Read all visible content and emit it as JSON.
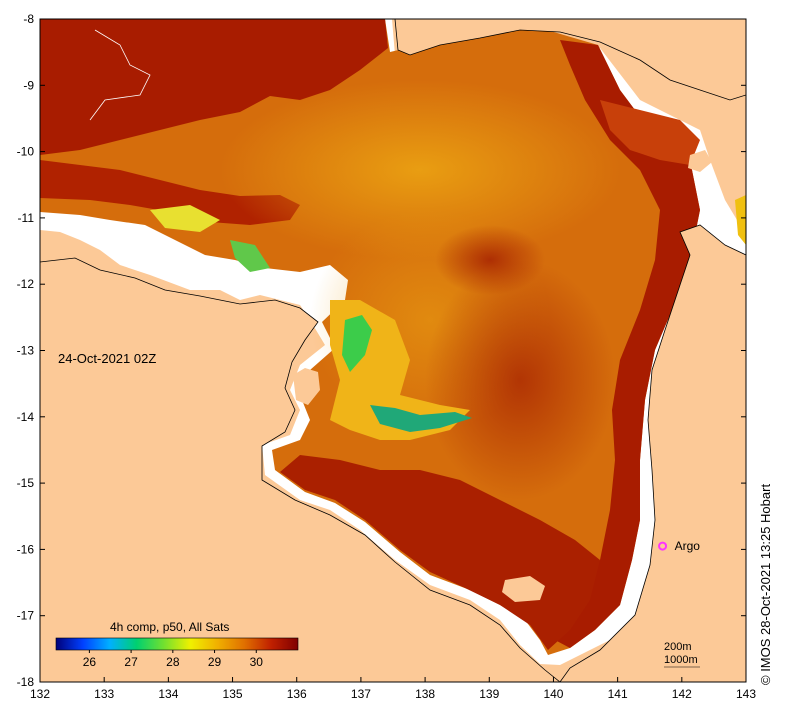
{
  "map": {
    "timestamp_label": "24-Oct-2021 02Z",
    "credit": "© IMOS 28-Oct-2021 13:25 Hobart",
    "x_axis": {
      "ticks": [
        "132",
        "133",
        "134",
        "135",
        "136",
        "137",
        "138",
        "139",
        "140",
        "141",
        "142",
        "143"
      ],
      "range": [
        132,
        143
      ]
    },
    "y_axis": {
      "ticks": [
        "-8",
        "-9",
        "-10",
        "-11",
        "-12",
        "-13",
        "-14",
        "-15",
        "-16",
        "-17",
        "-18"
      ],
      "range": [
        -18,
        -8
      ]
    },
    "colorbar": {
      "title": "4h comp, p50, All Sats",
      "ticks": [
        "26",
        "27",
        "28",
        "29",
        "30"
      ],
      "range": [
        25.2,
        31.0
      ],
      "colors": [
        "#00007a",
        "#0040ff",
        "#00b0ff",
        "#00d070",
        "#70e030",
        "#f0f000",
        "#f0b000",
        "#e07000",
        "#c02000",
        "#800000"
      ]
    },
    "markers": [
      {
        "label": "Argo",
        "lon": 141.7,
        "lat": -15.95,
        "color": "#ff33ff"
      }
    ],
    "depth_legend": [
      "200m",
      "1000m"
    ],
    "colors": {
      "land": "#fcc997",
      "nodata": "#ffffff",
      "sst_hot": "#a81c00",
      "sst_mid": "#d4690a",
      "sst_warm": "#ea9a10"
    }
  }
}
